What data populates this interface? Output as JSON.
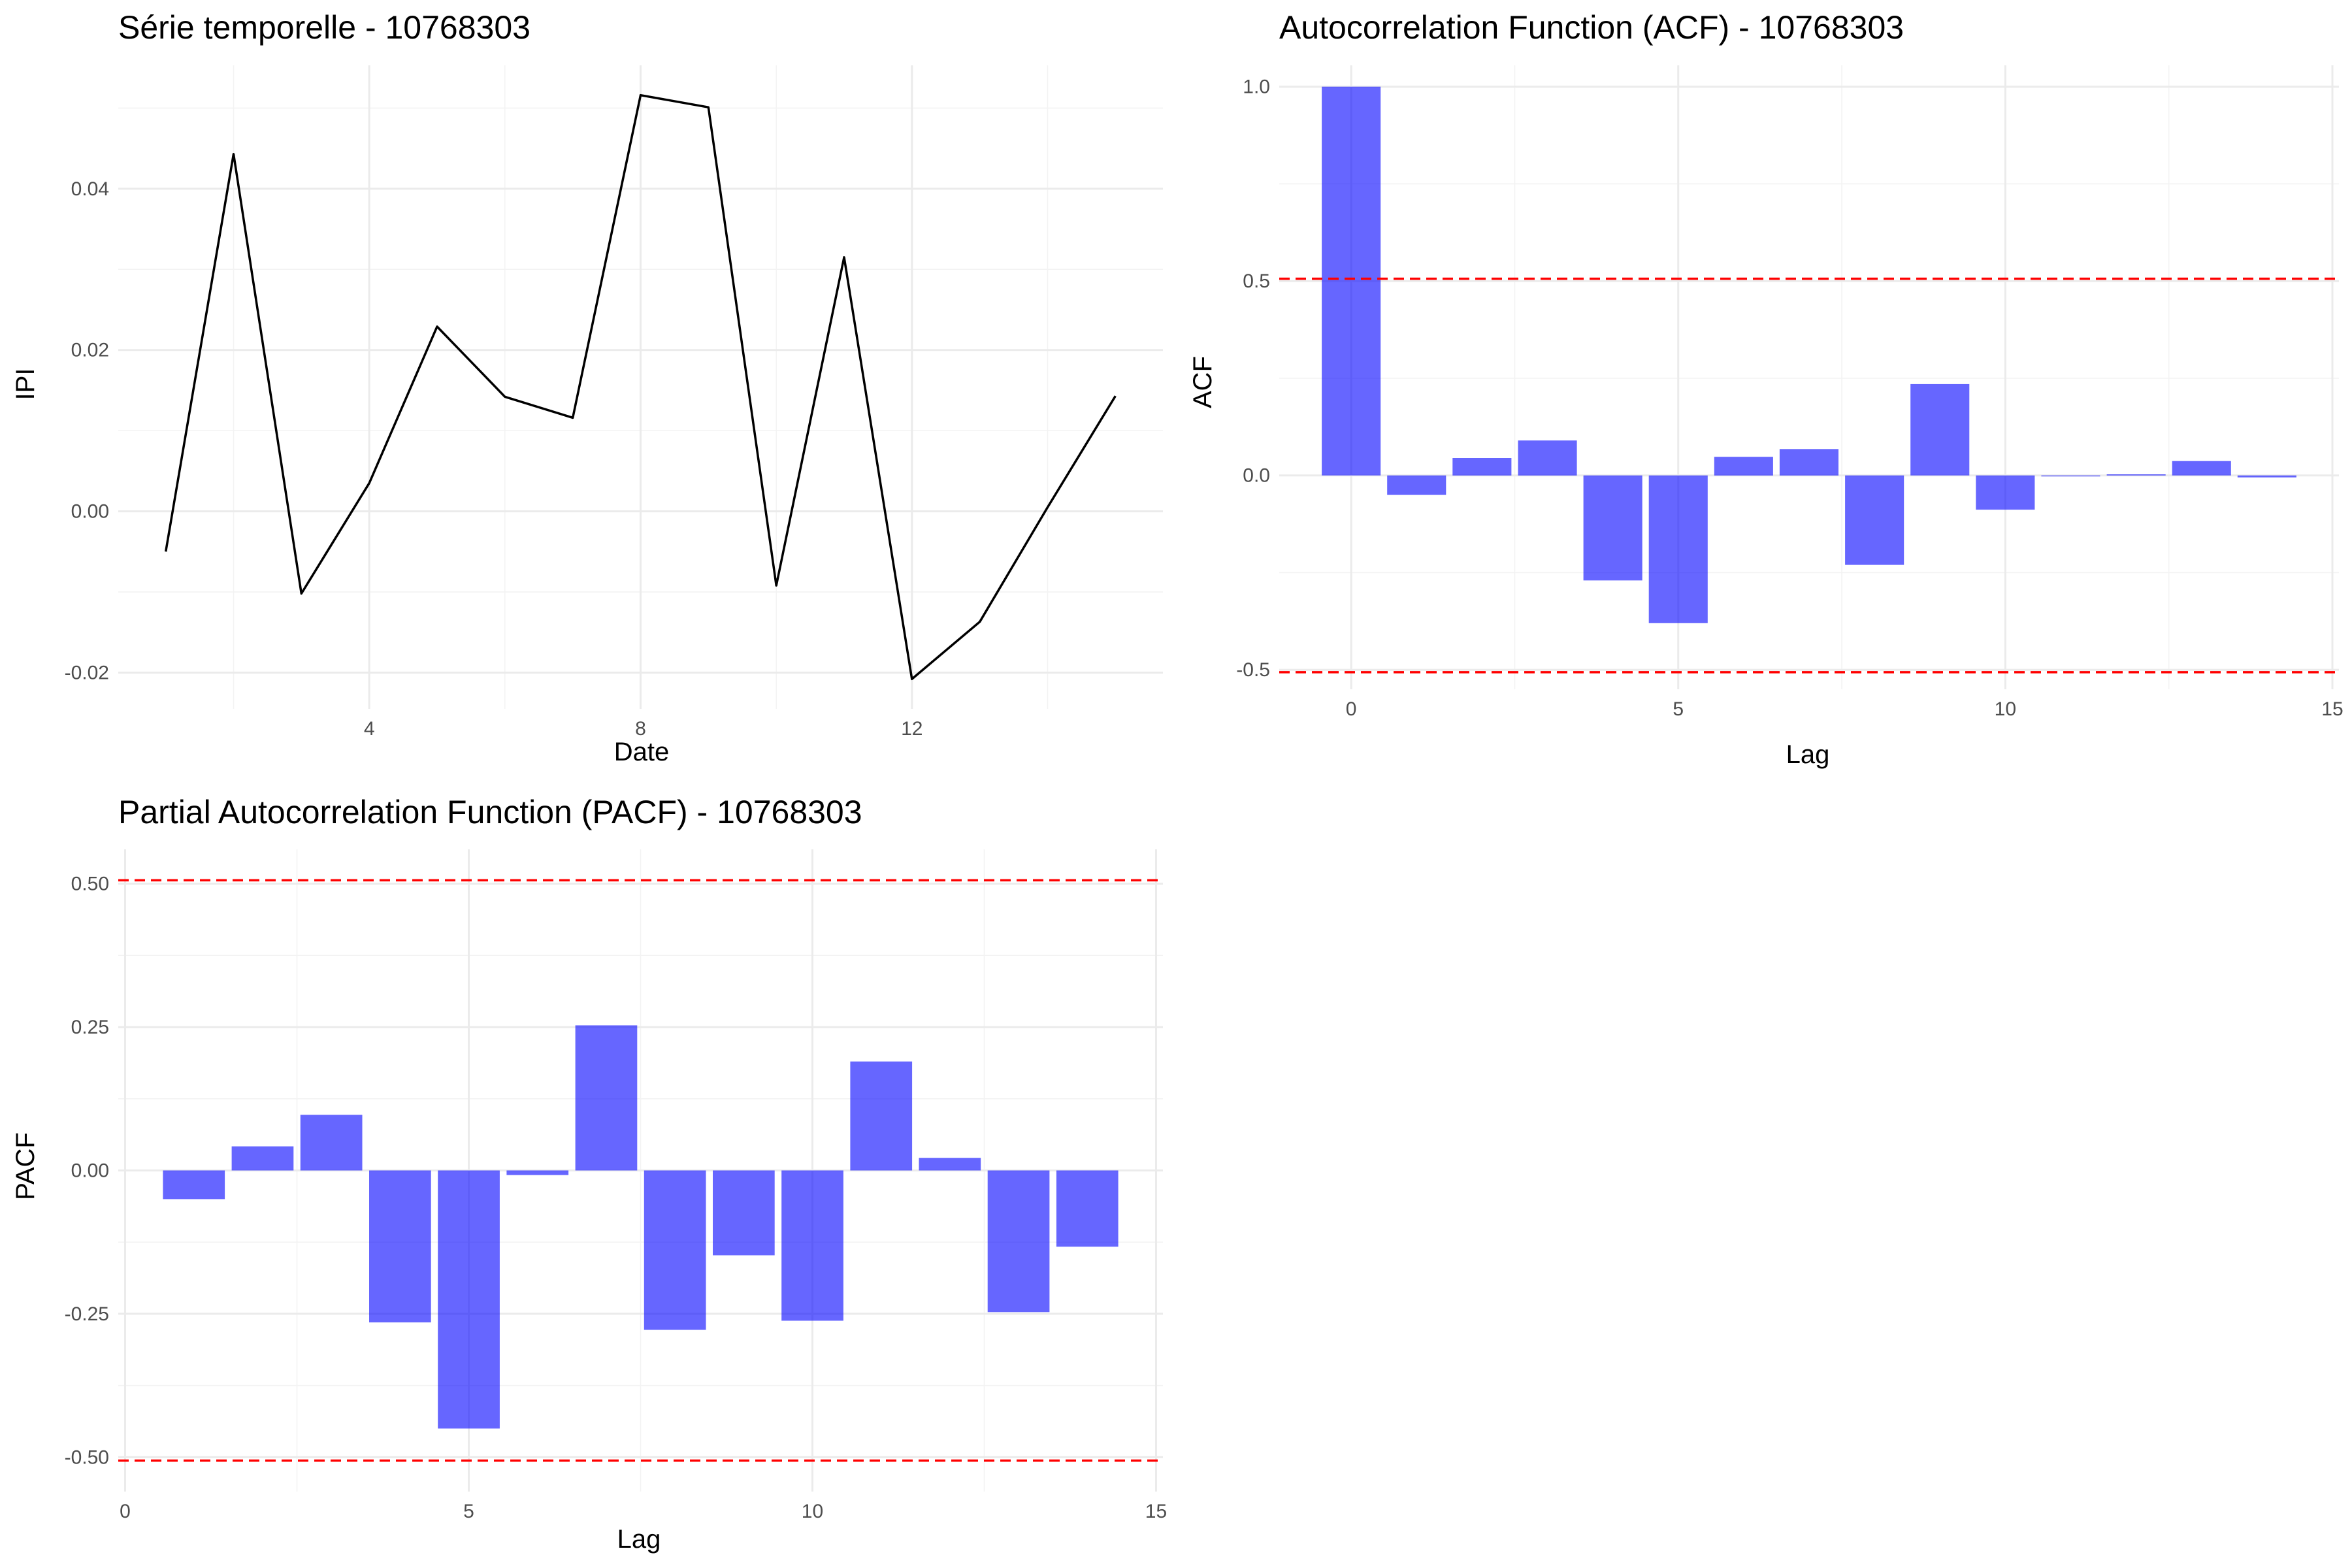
{
  "chart_data": [
    {
      "id": "ts",
      "type": "line",
      "title": "Série temporelle - 10768303",
      "xlabel": "Date",
      "ylabel": "IPI",
      "x": [
        1,
        2,
        3,
        4,
        5,
        6,
        7,
        8,
        9,
        10,
        11,
        12,
        13,
        14,
        15
      ],
      "values": [
        -0.005,
        0.0443,
        -0.0102,
        0.0035,
        0.0229,
        0.0142,
        0.0116,
        0.0516,
        0.0501,
        -0.0092,
        0.0315,
        -0.0208,
        -0.0137,
        0.0005,
        0.0143
      ],
      "xlim": [
        0.3,
        15.7
      ],
      "ylim": [
        -0.0245,
        0.0553
      ],
      "xticks": [
        4,
        8,
        12
      ],
      "xtick_labels": [
        "4",
        "8",
        "12"
      ],
      "xticks_minor": [
        2,
        6,
        10,
        14
      ],
      "yticks": [
        -0.02,
        0.0,
        0.02,
        0.04
      ],
      "ytick_labels": [
        "-0.02",
        "0.00",
        "0.02",
        "0.04"
      ],
      "yticks_minor": [
        -0.01,
        0.01,
        0.03,
        0.05
      ],
      "grid": true,
      "color": "#000000"
    },
    {
      "id": "acf",
      "type": "bar",
      "title": "Autocorrelation Function (ACF) - 10768303",
      "xlabel": "Lag",
      "ylabel": "ACF",
      "x": [
        0,
        1,
        2,
        3,
        4,
        5,
        6,
        7,
        8,
        9,
        10,
        11,
        12,
        13,
        14
      ],
      "values": [
        1.0,
        -0.05,
        0.045,
        0.09,
        -0.27,
        -0.38,
        0.048,
        0.068,
        -0.23,
        0.235,
        -0.088,
        -0.002,
        0.003,
        0.037,
        -0.005
      ],
      "confidence_bounds": [
        0.506,
        -0.506
      ],
      "xlim": [
        -1.1,
        15.1
      ],
      "ylim": [
        -0.55,
        1.055
      ],
      "xticks": [
        0,
        5,
        10,
        15
      ],
      "xtick_labels": [
        "0",
        "5",
        "10",
        "15"
      ],
      "xticks_minor": [
        2.5,
        7.5,
        12.5
      ],
      "yticks": [
        -0.5,
        0.0,
        0.5,
        1.0
      ],
      "ytick_labels": [
        "-0.5",
        "0.0",
        "0.5",
        "1.0"
      ],
      "yticks_minor": [
        -0.25,
        0.25,
        0.75
      ],
      "grid": true,
      "bar_color": "#0000ff",
      "bound_color": "#ff0000"
    },
    {
      "id": "pacf",
      "type": "bar",
      "title": "Partial Autocorrelation Function (PACF) - 10768303",
      "xlabel": "Lag",
      "ylabel": "PACF",
      "x": [
        1,
        2,
        3,
        4,
        5,
        6,
        7,
        8,
        9,
        10,
        11,
        12,
        13,
        14
      ],
      "values": [
        -0.05,
        0.042,
        0.097,
        -0.265,
        -0.45,
        -0.008,
        0.253,
        -0.278,
        -0.148,
        -0.262,
        0.19,
        0.022,
        -0.247,
        -0.133
      ],
      "confidence_bounds": [
        0.506,
        -0.506
      ],
      "xlim": [
        -0.1,
        15.1
      ],
      "ylim": [
        -0.56,
        0.56
      ],
      "xticks": [
        0,
        5,
        10,
        15
      ],
      "xtick_labels": [
        "0",
        "5",
        "10",
        "15"
      ],
      "xticks_minor": [
        2.5,
        7.5,
        12.5
      ],
      "yticks": [
        -0.5,
        -0.25,
        0.0,
        0.25,
        0.5
      ],
      "ytick_labels": [
        "-0.50",
        "-0.25",
        "0.00",
        "0.25",
        "0.50"
      ],
      "yticks_minor": [
        -0.375,
        -0.125,
        0.125,
        0.375
      ],
      "grid": true,
      "bar_color": "#0000ff",
      "bound_color": "#ff0000"
    }
  ]
}
